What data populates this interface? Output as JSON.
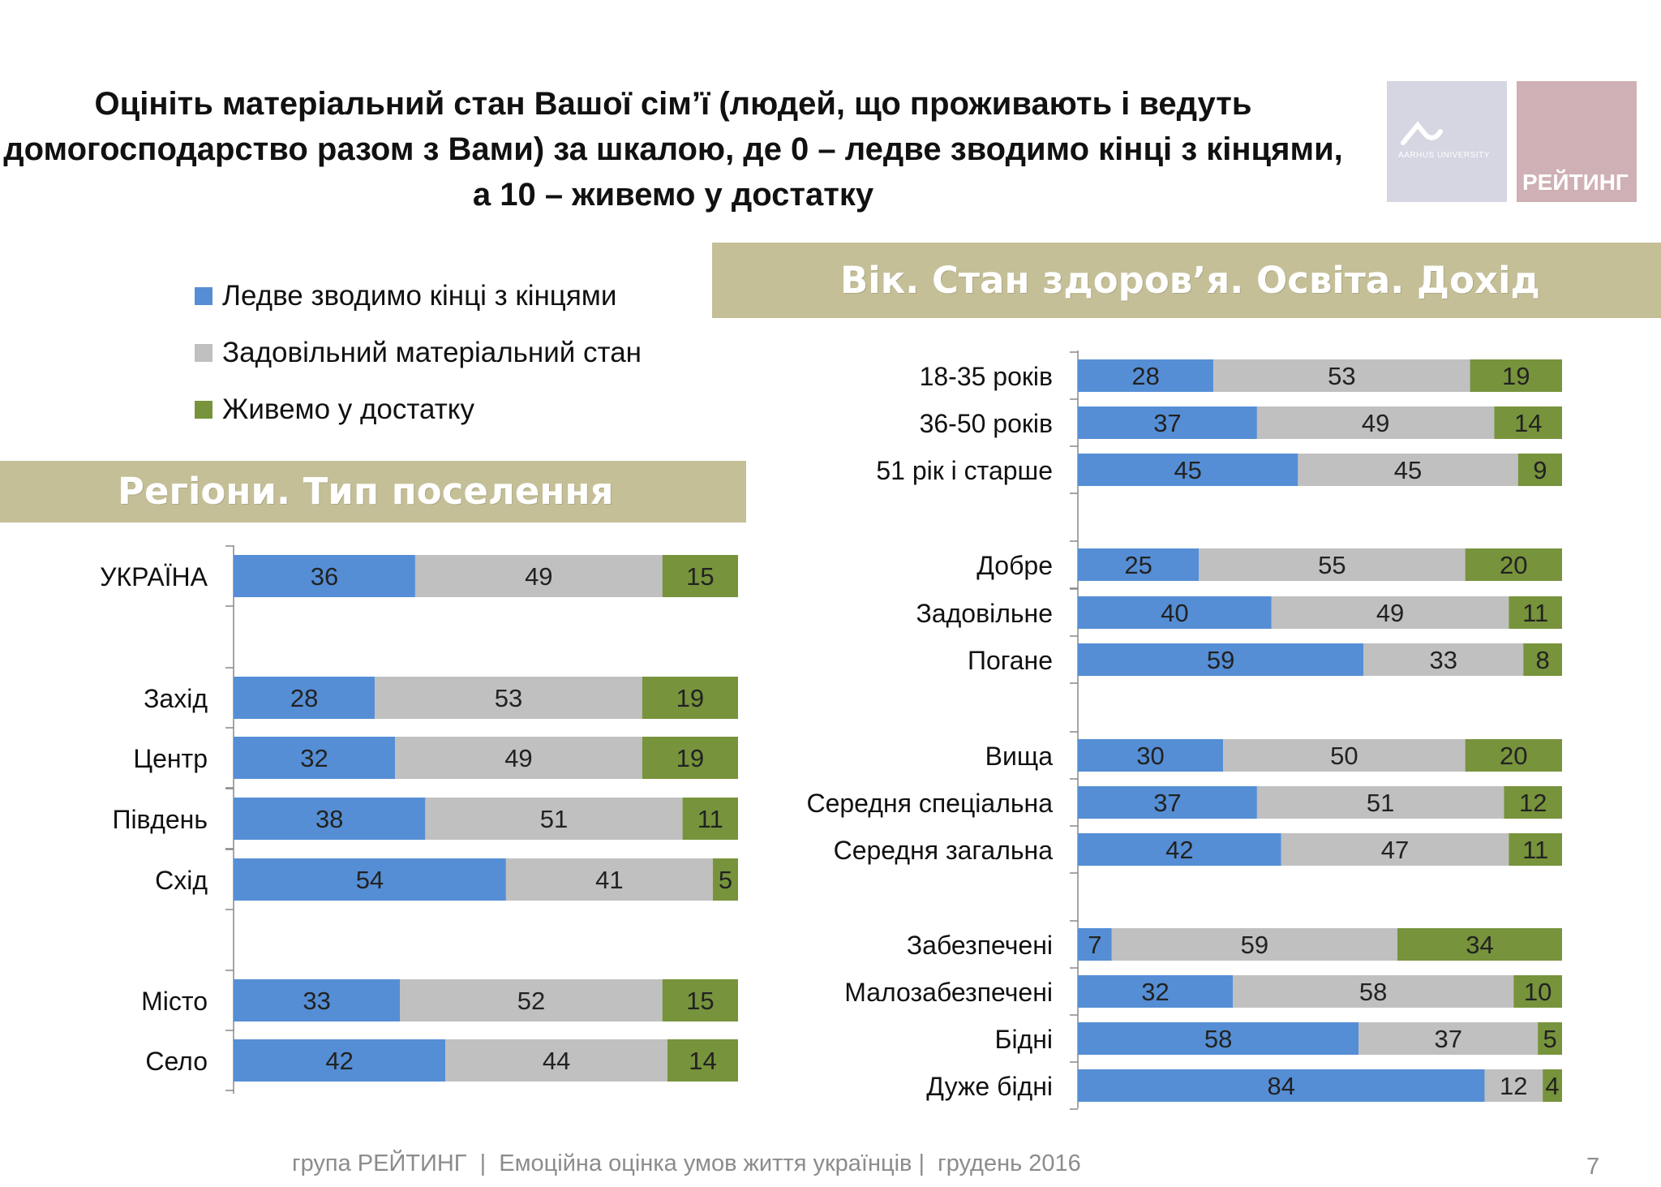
{
  "title_lines": [
    "Оцініть матеріальний стан Вашої сім’ї (людей, що проживають і ведуть",
    "домогосподарство разом з Вами) за шкалою, де 0 –  ледве зводимо кінці з кінцями,",
    "а 10 – живемо у достатку"
  ],
  "logos": {
    "aarhus_text": "AARHUS UNIVERSITY",
    "rating_text": "РЕЙТИНГ"
  },
  "legend": [
    {
      "label": "Ледве зводимо кінці з кінцями",
      "color": "#558ed5"
    },
    {
      "label": "Задовільний матеріальний стан",
      "color": "#c0c0c0"
    },
    {
      "label": "Живемо у достатку",
      "color": "#77933c"
    }
  ],
  "banners": {
    "left": "Регіони. Тип поселення",
    "right": "Вік. Стан здоров’я. Освіта. Дохід"
  },
  "footer": "група РЕЙТИНГ  |  Емоційна оцінка умов життя українців |  грудень 2016",
  "page_number": "7",
  "chart_data": [
    {
      "type": "bar",
      "orientation": "horizontal",
      "stacked": true,
      "series_names": [
        "Ледве зводимо кінці з кінцями",
        "Задовільний матеріальний стан",
        "Живемо у достатку"
      ],
      "series_colors": [
        "#558ed5",
        "#c0c0c0",
        "#77933c"
      ],
      "groups": [
        {
          "categories": [
            "УКРАЇНА"
          ],
          "values": [
            [
              36,
              49,
              15
            ]
          ]
        },
        {
          "categories": [
            "Захід",
            "Центр",
            "Південь",
            "Схід"
          ],
          "values": [
            [
              28,
              53,
              19
            ],
            [
              32,
              49,
              19
            ],
            [
              38,
              51,
              11
            ],
            [
              54,
              41,
              5
            ]
          ]
        },
        {
          "categories": [
            "Місто",
            "Село"
          ],
          "values": [
            [
              33,
              52,
              15
            ],
            [
              42,
              44,
              14
            ]
          ]
        }
      ]
    },
    {
      "type": "bar",
      "orientation": "horizontal",
      "stacked": true,
      "series_names": [
        "Ледве зводимо кінці з кінцями",
        "Задовільний матеріальний стан",
        "Живемо у достатку"
      ],
      "series_colors": [
        "#558ed5",
        "#c0c0c0",
        "#77933c"
      ],
      "groups": [
        {
          "categories": [
            "18-35 років",
            "36-50 років",
            "51 рік і старше"
          ],
          "values": [
            [
              28,
              53,
              19
            ],
            [
              37,
              49,
              14
            ],
            [
              45,
              45,
              9
            ]
          ]
        },
        {
          "categories": [
            "Добре",
            "Задовільне",
            "Погане"
          ],
          "values": [
            [
              25,
              55,
              20
            ],
            [
              40,
              49,
              11
            ],
            [
              59,
              33,
              8
            ]
          ]
        },
        {
          "categories": [
            "Вища",
            "Середня спеціальна",
            "Середня загальна"
          ],
          "values": [
            [
              30,
              50,
              20
            ],
            [
              37,
              51,
              12
            ],
            [
              42,
              47,
              11
            ]
          ]
        },
        {
          "categories": [
            "Забезпечені",
            "Малозабезпечені",
            "Бідні",
            "Дуже бідні"
          ],
          "values": [
            [
              7,
              59,
              34
            ],
            [
              32,
              58,
              10
            ],
            [
              58,
              37,
              5
            ],
            [
              84,
              12,
              4
            ]
          ]
        }
      ]
    }
  ]
}
